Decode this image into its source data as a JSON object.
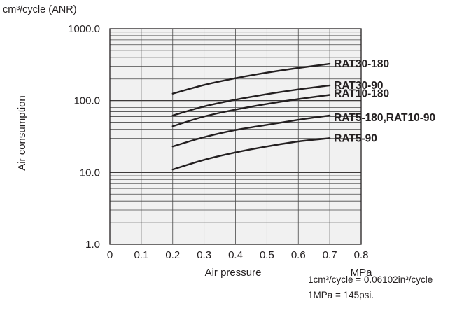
{
  "chart_data": {
    "type": "line",
    "y_unit_label": "cm3/cycle (ANR)",
    "ylabel": "Air consumption",
    "xlabel": "Air pressure",
    "x_unit": "MPa",
    "x_ticks": [
      "0",
      "0.1",
      "0.2",
      "0.3",
      "0.4",
      "0.5",
      "0.6",
      "0.7",
      "0.8"
    ],
    "y_ticks": [
      "1.0",
      "10.0",
      "100.0",
      "1000.0"
    ],
    "xlim": [
      0,
      0.8
    ],
    "ylim": [
      1,
      1000
    ],
    "y_scale": "log",
    "grid": true,
    "legend": "inline labels at right end of each curve",
    "x": [
      0.2,
      0.3,
      0.4,
      0.5,
      0.6,
      0.7
    ],
    "series": [
      {
        "name": "RAT30-180",
        "values": [
          125,
          165,
          205,
          245,
          285,
          325
        ]
      },
      {
        "name": "RAT30-90",
        "values": [
          62,
          83,
          103,
          123,
          143,
          163
        ]
      },
      {
        "name": "RAT10-180",
        "values": [
          44,
          60,
          75,
          90,
          105,
          120
        ]
      },
      {
        "name": "RAT5-180,RAT10-90",
        "values": [
          23,
          31,
          39,
          46,
          54,
          62
        ]
      },
      {
        "name": "RAT5-90",
        "values": [
          11,
          15,
          19,
          23,
          27,
          30
        ]
      }
    ]
  },
  "notes": {
    "line1": "1cm³/cycle = 0.06102in³/cycle",
    "line2": "1MPa = 145psi."
  }
}
